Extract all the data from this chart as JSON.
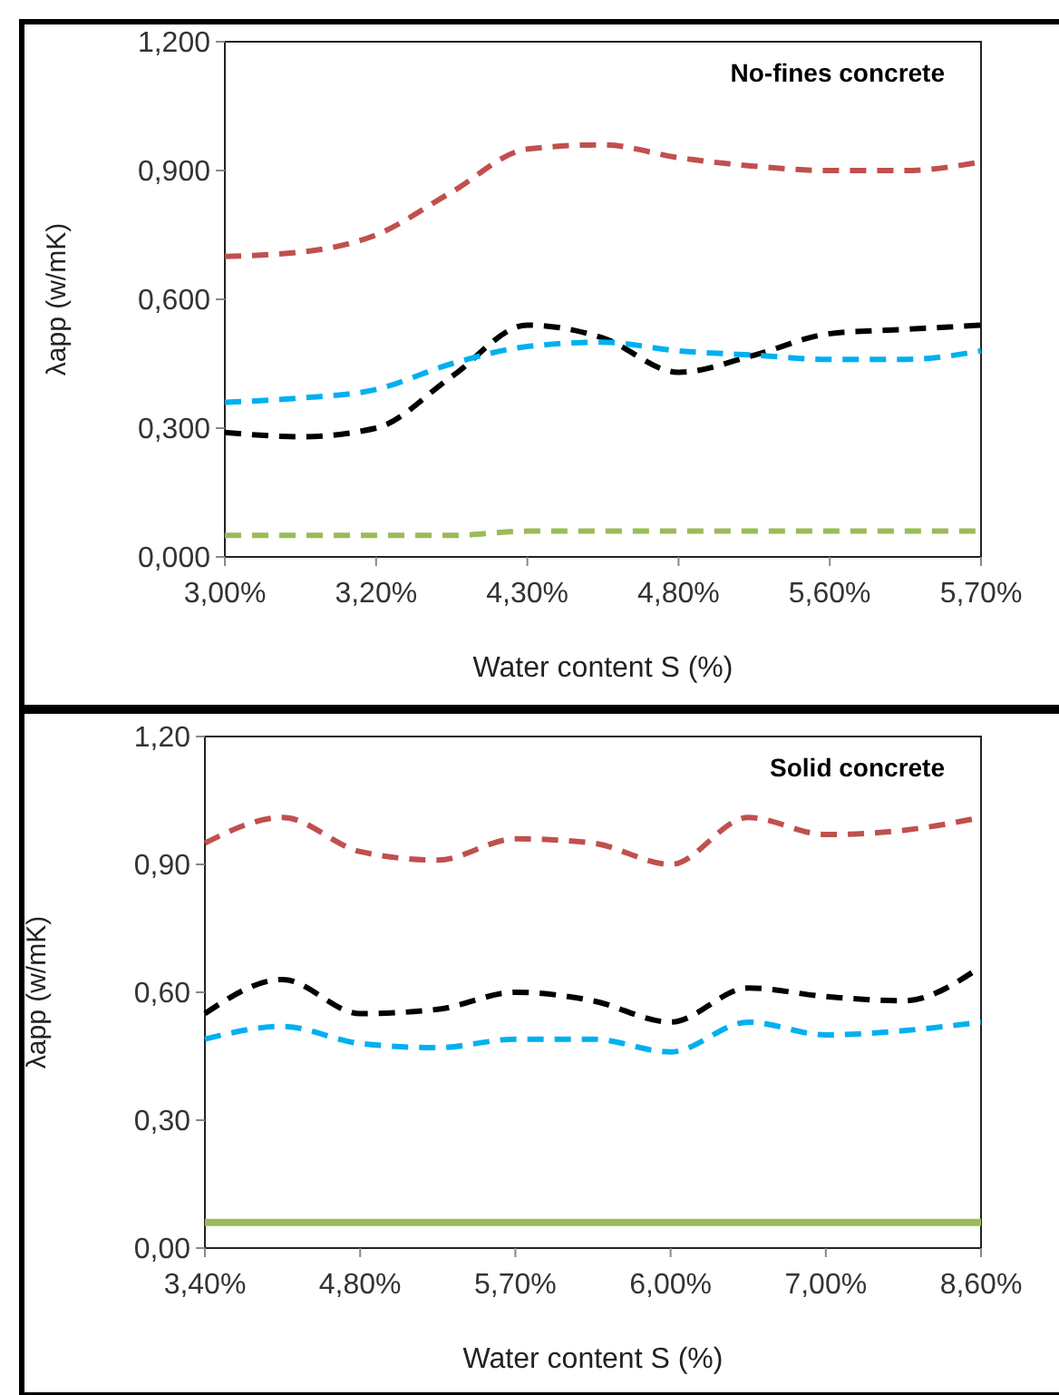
{
  "chart_data": [
    {
      "type": "line",
      "title": "No-fines concrete",
      "xlabel": "Water content  S (%)",
      "ylabel": "λapp  (w/mK)",
      "categories": [
        "3,00%",
        null,
        "3,20%",
        null,
        "4,30%",
        null,
        "4,80%",
        null,
        "5,60%",
        null,
        "5,70%"
      ],
      "ylim": [
        0,
        1.2
      ],
      "yticks": [
        {
          "value": 0,
          "label": "0,000"
        },
        {
          "value": 0.3,
          "label": "0,300"
        },
        {
          "value": 0.6,
          "label": "0,600"
        },
        {
          "value": 0.9,
          "label": "0,900"
        },
        {
          "value": 1.2,
          "label": "1,200"
        }
      ],
      "grid": false,
      "marker": "none",
      "series": [
        {
          "color": "#c0504d",
          "line_style": "dashed",
          "values": [
            0.7,
            0.71,
            0.75,
            0.85,
            0.95,
            0.96,
            0.93,
            0.91,
            0.9,
            0.9,
            0.92
          ]
        },
        {
          "color": "#000000",
          "line_style": "dashed",
          "values": [
            0.29,
            0.28,
            0.3,
            0.42,
            0.54,
            0.51,
            0.43,
            0.47,
            0.52,
            0.53,
            0.54
          ]
        },
        {
          "color": "#00b0f0",
          "line_style": "dashed",
          "values": [
            0.36,
            0.37,
            0.39,
            0.45,
            0.49,
            0.5,
            0.48,
            0.47,
            0.46,
            0.46,
            0.48
          ]
        },
        {
          "color": "#9bbb59",
          "line_style": "dashed",
          "values": [
            0.05,
            0.05,
            0.05,
            0.05,
            0.06,
            0.06,
            0.06,
            0.06,
            0.06,
            0.06,
            0.06
          ]
        }
      ]
    },
    {
      "type": "line",
      "title": "Solid concrete",
      "xlabel": "Water content S (%)",
      "ylabel": "λapp  (w/mK)",
      "categories": [
        "3,40%",
        null,
        "4,80%",
        null,
        "5,70%",
        null,
        "6,00%",
        null,
        "7,00%",
        null,
        "8,60%"
      ],
      "ylim": [
        0,
        1.2
      ],
      "yticks": [
        {
          "value": 0,
          "label": "0,00"
        },
        {
          "value": 0.3,
          "label": "0,30"
        },
        {
          "value": 0.6,
          "label": "0,60"
        },
        {
          "value": 0.9,
          "label": "0,90"
        },
        {
          "value": 1.2,
          "label": "1,20"
        }
      ],
      "grid": false,
      "marker": "none",
      "series": [
        {
          "color": "#c0504d",
          "line_style": "dashed",
          "values": [
            0.95,
            1.01,
            0.93,
            0.91,
            0.96,
            0.95,
            0.9,
            1.01,
            0.97,
            0.98,
            1.01
          ]
        },
        {
          "color": "#000000",
          "line_style": "dashed",
          "values": [
            0.55,
            0.63,
            0.55,
            0.56,
            0.6,
            0.58,
            0.53,
            0.61,
            0.59,
            0.58,
            0.66
          ]
        },
        {
          "color": "#00b0f0",
          "line_style": "dashed",
          "values": [
            0.49,
            0.52,
            0.48,
            0.47,
            0.49,
            0.49,
            0.46,
            0.53,
            0.5,
            0.51,
            0.53
          ]
        },
        {
          "color": "#9bbb59",
          "line_style": "solid",
          "values": [
            0.06,
            0.06,
            0.06,
            0.06,
            0.06,
            0.06,
            0.06,
            0.06,
            0.06,
            0.06,
            0.06
          ]
        }
      ]
    }
  ]
}
